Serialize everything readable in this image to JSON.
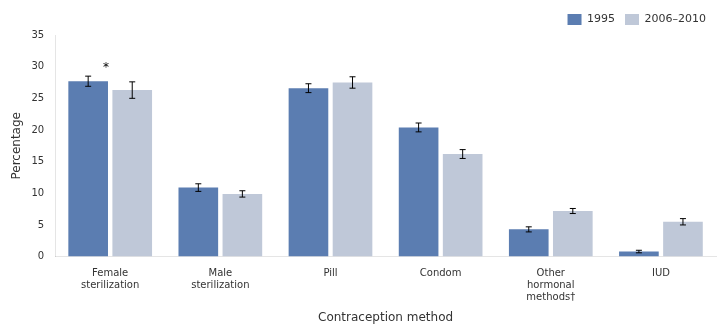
{
  "chart_data": {
    "type": "bar",
    "xlabel": "Contraception method",
    "ylabel": "Percentage",
    "categories": [
      "Female\nsterilization",
      "Male\nsterilization",
      "Pill",
      "Condom",
      "Other\nhormonal\nmethods†",
      "IUD"
    ],
    "series": [
      {
        "name": "1995",
        "color": "#5b7db1",
        "values": [
          27.7,
          10.9,
          26.6,
          20.4,
          4.3,
          0.8
        ],
        "errors": [
          0.8,
          0.6,
          0.7,
          0.7,
          0.4,
          0.2
        ]
      },
      {
        "name": "2006–2010",
        "color": "#bfc8d8",
        "values": [
          26.3,
          9.9,
          27.5,
          16.2,
          7.2,
          5.5
        ],
        "errors": [
          1.3,
          0.5,
          0.9,
          0.7,
          0.4,
          0.5
        ]
      }
    ],
    "annotations": [
      {
        "text": "*",
        "series": "1995",
        "category": "Female\nsterilization"
      }
    ],
    "ylim": [
      0,
      35
    ],
    "yticks": [
      0,
      5,
      10,
      15,
      20,
      25,
      30,
      35
    ],
    "grid": false,
    "legend": "upper right"
  }
}
